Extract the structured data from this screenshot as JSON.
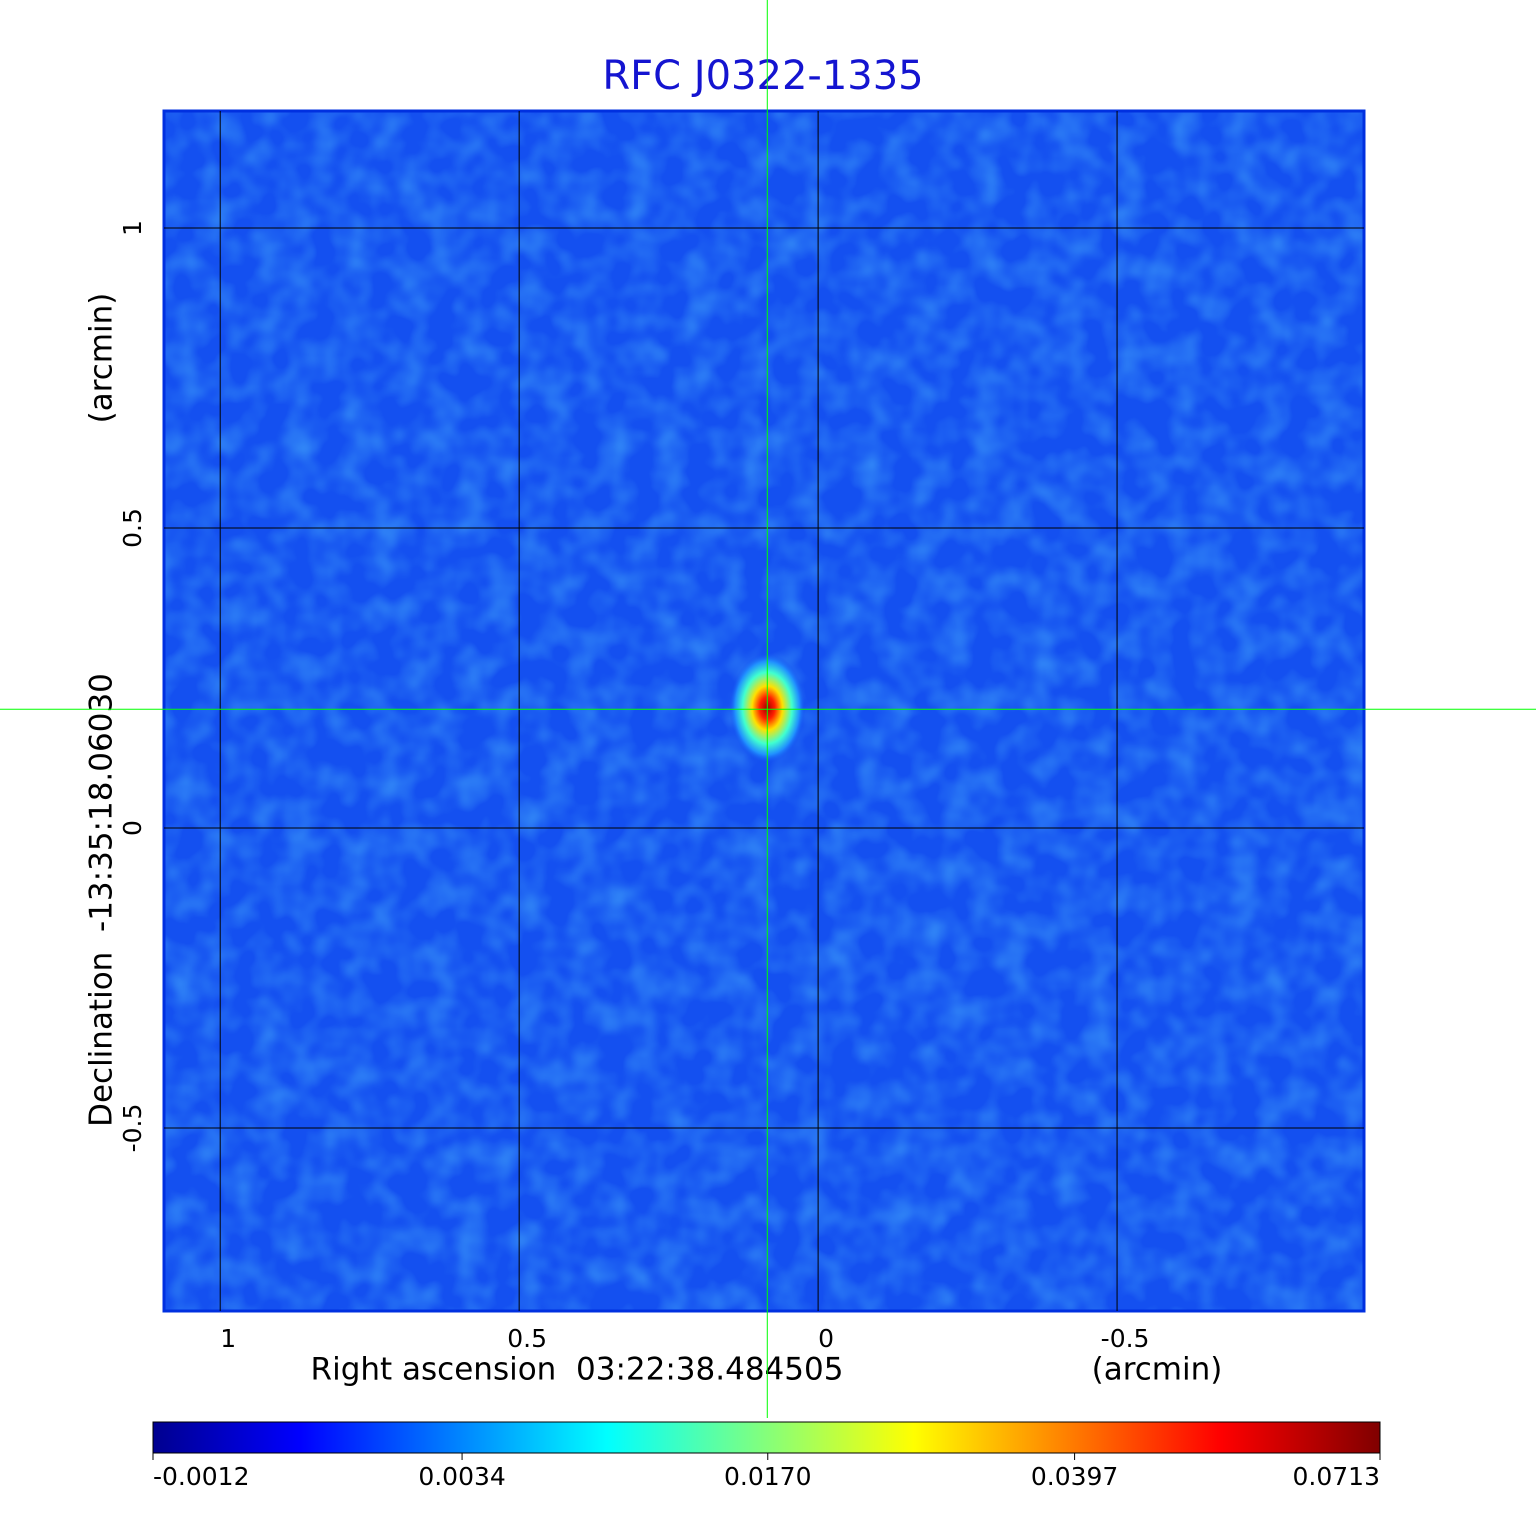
{
  "chart_data": {
    "type": "image",
    "title": "RFC J0322-1335",
    "x_label": "Right ascension  03:22:38.484505",
    "x_unit": "(arcmin)",
    "y_label": "Declination  -13:35:18.06030",
    "y_unit": "(arcmin)",
    "xlim": [
      1.094,
      -0.913
    ],
    "xticks": [
      1.0,
      0.5,
      0.0,
      -0.5
    ],
    "ylim": [
      -0.805,
      1.195
    ],
    "yticks": [
      1.0,
      0.5,
      0.0,
      -0.5
    ],
    "grid": true,
    "crosshair": {
      "x": 0.085,
      "y": 0.198,
      "color": "#00ff00"
    },
    "source": {
      "x": 0.085,
      "y": 0.2
    },
    "colorbar": {
      "scale": "sqrt",
      "clim": [
        -0.0012,
        0.0713
      ],
      "ticks": [
        -0.0012,
        0.0034,
        {
          "value": 0.017,
          "label": "0.0170"
        },
        0.0397,
        0.0713
      ]
    }
  }
}
